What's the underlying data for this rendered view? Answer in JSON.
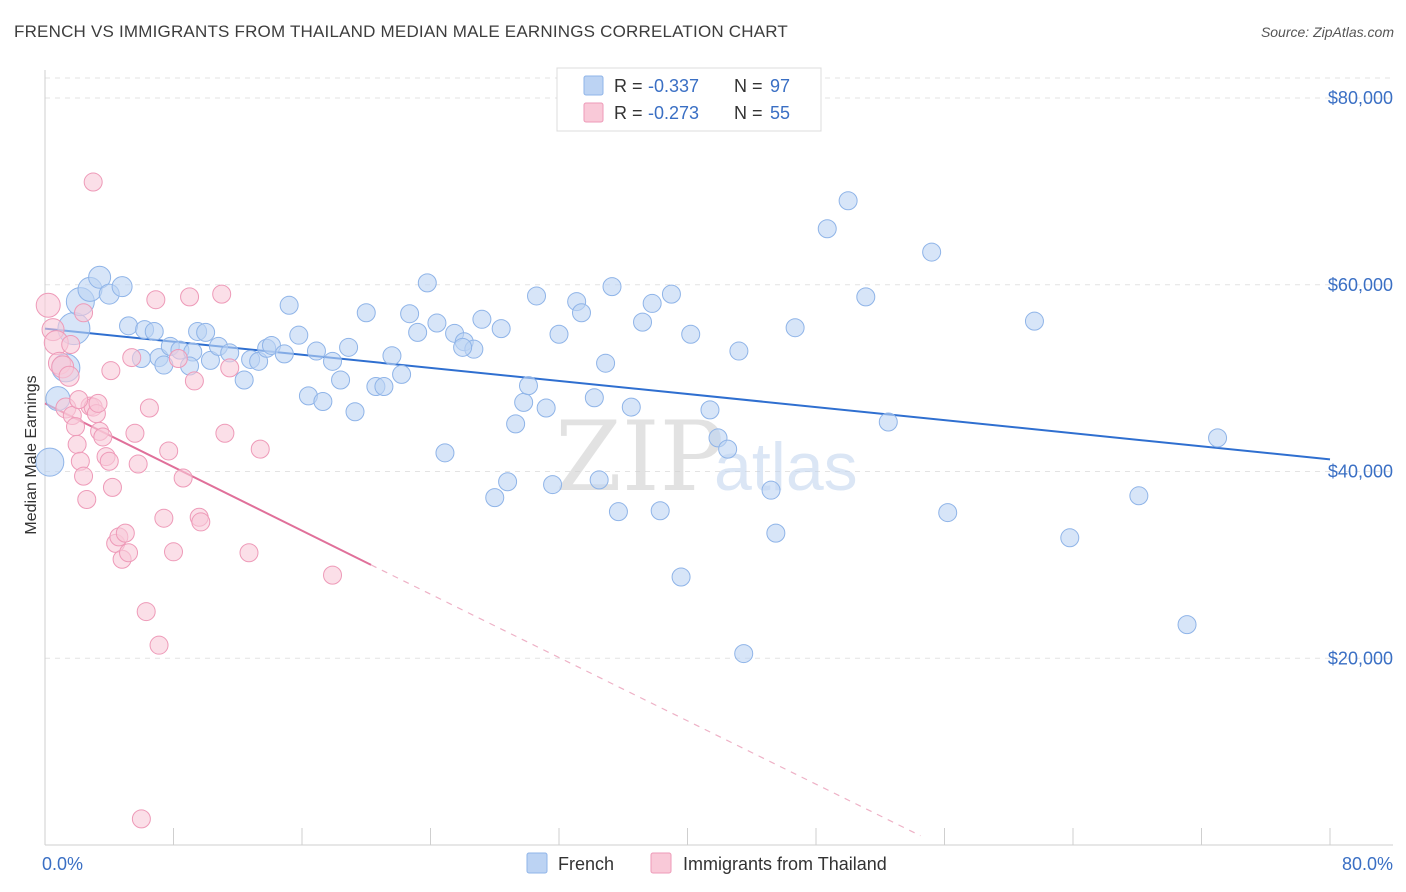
{
  "title": "FRENCH VS IMMIGRANTS FROM THAILAND MEDIAN MALE EARNINGS CORRELATION CHART",
  "source": "Source: ZipAtlas.com",
  "watermark": {
    "zip": "ZIP",
    "atlas": "atlas"
  },
  "legend_top": [
    {
      "r_label": "R =",
      "r_value": "-0.337",
      "n_label": "N =",
      "n_value": "97",
      "color": "#8fb4e8",
      "fill": "#bcd3f3"
    },
    {
      "r_label": "R =",
      "r_value": "-0.273",
      "n_label": "N =",
      "n_value": "55",
      "color": "#ee9ab8",
      "fill": "#f9c9d8"
    }
  ],
  "chart_data": {
    "type": "scatter",
    "title": "FRENCH VS IMMIGRANTS FROM THAILAND MEDIAN MALE EARNINGS CORRELATION CHART",
    "xlabel": "",
    "ylabel": "Median Male Earnings",
    "xlim": [
      0,
      80
    ],
    "ylim": [
      0,
      83000
    ],
    "x_tick_labels": [
      "0.0%",
      "80.0%"
    ],
    "y_ticks": [
      20000,
      40000,
      60000,
      80000
    ],
    "y_tick_labels": [
      "$20,000",
      "$40,000",
      "$60,000",
      "$80,000"
    ],
    "grid": true,
    "series": [
      {
        "name": "French",
        "color": "#8fb4e8",
        "fill": "#bcd3f3",
        "trend": {
          "x": [
            0,
            80
          ],
          "y": [
            55300,
            41300
          ],
          "color": "#2f6fd0"
        },
        "points": [
          [
            0.3,
            41000,
            14
          ],
          [
            0.8,
            47800,
            12
          ],
          [
            1.3,
            51100,
            14
          ],
          [
            1.8,
            55300,
            16
          ],
          [
            2.2,
            58200,
            14
          ],
          [
            2.8,
            59500,
            12
          ],
          [
            3.4,
            60800,
            11
          ],
          [
            4.0,
            59000,
            10
          ],
          [
            4.8,
            59800,
            10
          ],
          [
            5.2,
            55600,
            9
          ],
          [
            6.2,
            55200,
            9
          ],
          [
            6.8,
            55000,
            9
          ],
          [
            7.1,
            52200,
            9
          ],
          [
            7.4,
            51400,
            9
          ],
          [
            7.8,
            53400,
            9
          ],
          [
            8.4,
            53000,
            9
          ],
          [
            9.2,
            52800,
            9
          ],
          [
            9.5,
            55000,
            9
          ],
          [
            10.0,
            54900,
            9
          ],
          [
            10.3,
            51900,
            9
          ],
          [
            10.8,
            53400,
            9
          ],
          [
            11.5,
            52700,
            9
          ],
          [
            12.4,
            49800,
            9
          ],
          [
            12.8,
            52000,
            9
          ],
          [
            13.3,
            51800,
            9
          ],
          [
            13.8,
            53200,
            9
          ],
          [
            14.1,
            53500,
            9
          ],
          [
            14.9,
            52600,
            9
          ],
          [
            15.2,
            57800,
            9
          ],
          [
            15.8,
            54600,
            9
          ],
          [
            16.4,
            48100,
            9
          ],
          [
            16.9,
            52900,
            9
          ],
          [
            17.3,
            47500,
            9
          ],
          [
            17.9,
            51800,
            9
          ],
          [
            18.4,
            49800,
            9
          ],
          [
            18.9,
            53300,
            9
          ],
          [
            19.3,
            46400,
            9
          ],
          [
            20.0,
            57000,
            9
          ],
          [
            20.6,
            49100,
            9
          ],
          [
            21.1,
            49100,
            9
          ],
          [
            21.6,
            52400,
            9
          ],
          [
            22.2,
            50400,
            9
          ],
          [
            22.7,
            56900,
            9
          ],
          [
            23.2,
            54900,
            9
          ],
          [
            23.8,
            60200,
            9
          ],
          [
            24.4,
            55900,
            9
          ],
          [
            24.9,
            42000,
            9
          ],
          [
            25.5,
            54800,
            9
          ],
          [
            26.1,
            53900,
            9
          ],
          [
            26.7,
            53100,
            9
          ],
          [
            27.2,
            56300,
            9
          ],
          [
            28.0,
            37200,
            9
          ],
          [
            28.4,
            55300,
            9
          ],
          [
            28.8,
            38900,
            9
          ],
          [
            29.3,
            45100,
            9
          ],
          [
            29.8,
            47400,
            9
          ],
          [
            30.1,
            49200,
            9
          ],
          [
            30.6,
            58800,
            9
          ],
          [
            31.2,
            46800,
            9
          ],
          [
            31.6,
            38600,
            9
          ],
          [
            32.0,
            54700,
            9
          ],
          [
            33.1,
            58200,
            9
          ],
          [
            33.4,
            57000,
            9
          ],
          [
            34.2,
            47900,
            9
          ],
          [
            34.5,
            39100,
            9
          ],
          [
            34.9,
            51600,
            9
          ],
          [
            35.3,
            59800,
            9
          ],
          [
            35.7,
            35700,
            9
          ],
          [
            36.5,
            46900,
            9
          ],
          [
            37.2,
            56000,
            9
          ],
          [
            37.8,
            58000,
            9
          ],
          [
            38.3,
            35800,
            9
          ],
          [
            39.0,
            59000,
            9
          ],
          [
            39.6,
            28700,
            9
          ],
          [
            40.2,
            54700,
            9
          ],
          [
            41.4,
            46600,
            9
          ],
          [
            41.9,
            43600,
            9
          ],
          [
            42.5,
            42400,
            9
          ],
          [
            43.2,
            52900,
            9
          ],
          [
            43.5,
            20500,
            9
          ],
          [
            45.2,
            38000,
            9
          ],
          [
            45.5,
            33400,
            9
          ],
          [
            46.7,
            55400,
            9
          ],
          [
            48.7,
            66000,
            9
          ],
          [
            50.0,
            69000,
            9
          ],
          [
            51.1,
            58700,
            9
          ],
          [
            52.5,
            45300,
            9
          ],
          [
            55.2,
            63500,
            9
          ],
          [
            56.2,
            35600,
            9
          ],
          [
            61.6,
            56100,
            9
          ],
          [
            63.8,
            32900,
            9
          ],
          [
            68.1,
            37400,
            9
          ],
          [
            71.1,
            23600,
            9
          ],
          [
            73.0,
            43600,
            9
          ],
          [
            26.0,
            53300,
            9
          ],
          [
            9.0,
            51300,
            9
          ],
          [
            6.0,
            52100,
            9
          ]
        ]
      },
      {
        "name": "Immigrants from Thailand",
        "color": "#ee9ab8",
        "fill": "#f9c9d8",
        "trend": {
          "x": [
            0,
            20.3
          ],
          "y": [
            47300,
            30000
          ],
          "color": "#e0709a"
        },
        "trend_dashed": {
          "x": [
            20.3,
            54.5
          ],
          "y": [
            30000,
            1000
          ]
        },
        "points": [
          [
            0.2,
            57800,
            12
          ],
          [
            0.5,
            55200,
            11
          ],
          [
            0.7,
            53800,
            12
          ],
          [
            0.9,
            51600,
            11
          ],
          [
            1.1,
            51200,
            11
          ],
          [
            1.3,
            46800,
            10
          ],
          [
            1.5,
            50200,
            10
          ],
          [
            1.7,
            46000,
            9
          ],
          [
            1.9,
            44800,
            9
          ],
          [
            2.0,
            42900,
            9
          ],
          [
            2.2,
            41100,
            9
          ],
          [
            2.4,
            39500,
            9
          ],
          [
            2.6,
            37000,
            9
          ],
          [
            2.8,
            47000,
            9
          ],
          [
            3.0,
            46900,
            9
          ],
          [
            3.2,
            46200,
            9
          ],
          [
            3.4,
            44300,
            9
          ],
          [
            3.6,
            43700,
            9
          ],
          [
            3.8,
            41600,
            9
          ],
          [
            4.0,
            41100,
            9
          ],
          [
            4.2,
            38300,
            9
          ],
          [
            4.4,
            32300,
            9
          ],
          [
            4.6,
            33000,
            9
          ],
          [
            4.8,
            30600,
            9
          ],
          [
            5.0,
            33400,
            9
          ],
          [
            5.2,
            31300,
            9
          ],
          [
            5.4,
            52200,
            9
          ],
          [
            5.6,
            44100,
            9
          ],
          [
            5.8,
            40800,
            9
          ],
          [
            6.0,
            2800,
            9
          ],
          [
            6.3,
            25000,
            9
          ],
          [
            6.5,
            46800,
            9
          ],
          [
            6.9,
            58400,
            9
          ],
          [
            7.1,
            21400,
            9
          ],
          [
            7.4,
            35000,
            9
          ],
          [
            7.7,
            42200,
            9
          ],
          [
            8.0,
            31400,
            9
          ],
          [
            8.3,
            52100,
            9
          ],
          [
            8.6,
            39300,
            9
          ],
          [
            9.0,
            58700,
            9
          ],
          [
            9.3,
            49700,
            9
          ],
          [
            9.6,
            35100,
            9
          ],
          [
            9.7,
            34600,
            9
          ],
          [
            11.0,
            59000,
            9
          ],
          [
            11.2,
            44100,
            9
          ],
          [
            11.5,
            51100,
            9
          ],
          [
            12.7,
            31300,
            9
          ],
          [
            13.4,
            42400,
            9
          ],
          [
            17.9,
            28900,
            9
          ],
          [
            3.0,
            71000,
            9
          ],
          [
            2.4,
            57000,
            9
          ],
          [
            1.6,
            53600,
            9
          ],
          [
            4.1,
            50800,
            9
          ],
          [
            3.3,
            47300,
            9
          ],
          [
            2.1,
            47700,
            9
          ]
        ]
      }
    ]
  },
  "bottom_legend": [
    {
      "label": "French",
      "color": "#8fb4e8",
      "fill": "#bcd3f3"
    },
    {
      "label": "Immigrants from Thailand",
      "color": "#ee9ab8",
      "fill": "#f9c9d8"
    }
  ]
}
